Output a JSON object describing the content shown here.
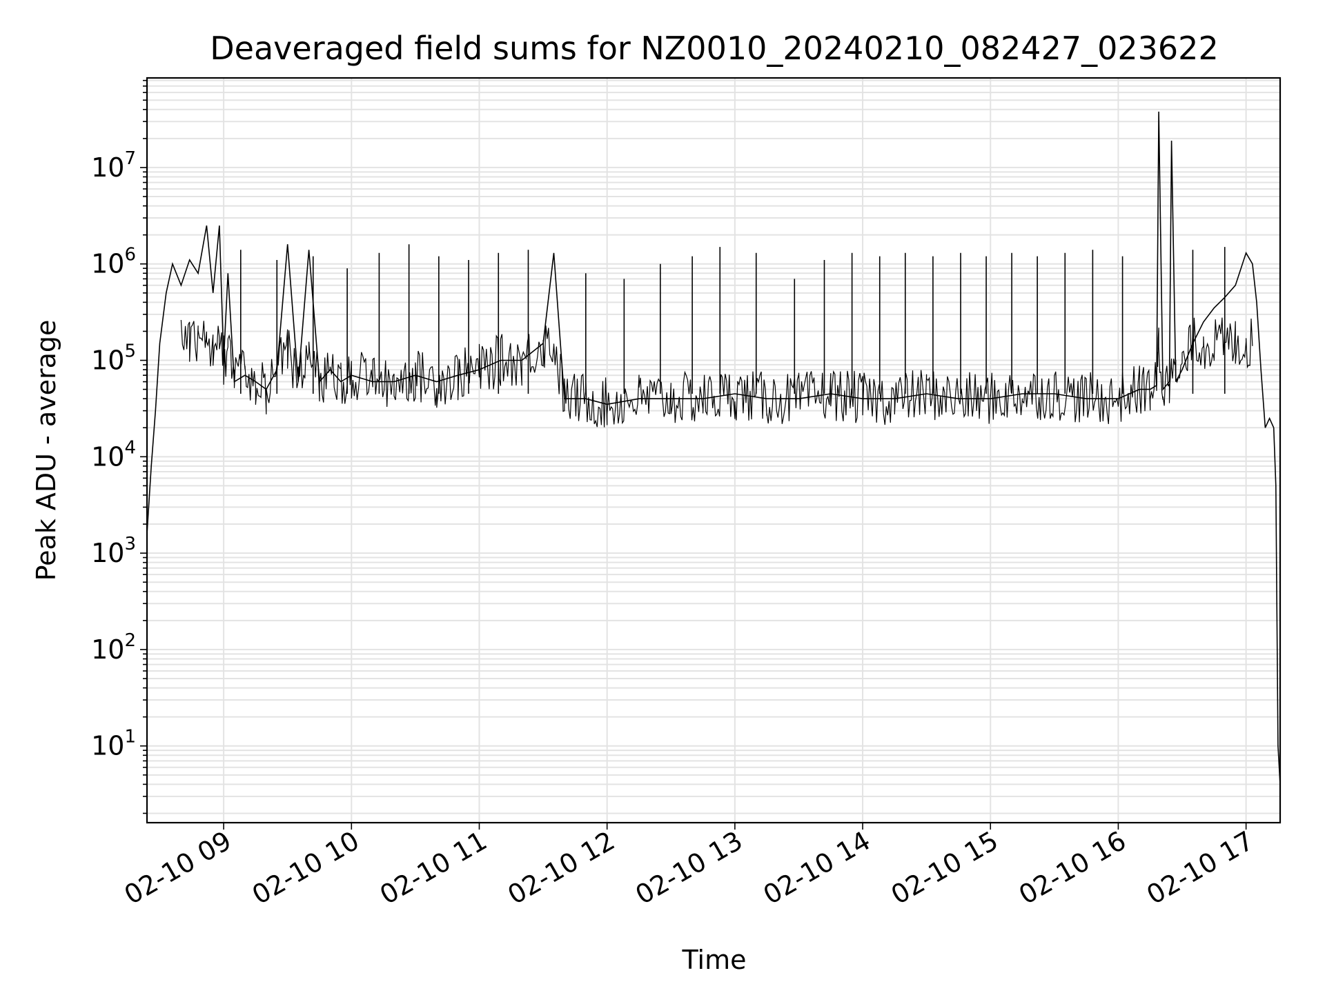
{
  "chart_data": {
    "type": "line",
    "title": "Deaveraged field sums for NZ0010_20240210_082427_023622",
    "xlabel": "Time",
    "ylabel": "Peak ADU - average",
    "yscale": "log",
    "xlim": [
      "2024-02-10 08:24",
      "2024-02-10 17:16"
    ],
    "ylim": [
      1.6,
      85000000.0
    ],
    "grid": true,
    "x_tick_labels": [
      "02-10 09",
      "02-10 10",
      "02-10 11",
      "02-10 12",
      "02-10 13",
      "02-10 14",
      "02-10 15",
      "02-10 16",
      "02-10 17"
    ],
    "y_tick_labels": [
      {
        "base": "10",
        "exp": "1"
      },
      {
        "base": "10",
        "exp": "2"
      },
      {
        "base": "10",
        "exp": "3"
      },
      {
        "base": "10",
        "exp": "4"
      },
      {
        "base": "10",
        "exp": "5"
      },
      {
        "base": "10",
        "exp": "6"
      },
      {
        "base": "10",
        "exp": "7"
      }
    ],
    "series": [
      {
        "color": "#000000",
        "x": [
          "2024-02-10 08:24",
          "2024-02-10 08:26",
          "2024-02-10 08:28",
          "2024-02-10 08:30",
          "2024-02-10 08:33",
          "2024-02-10 08:36",
          "2024-02-10 08:40",
          "2024-02-10 08:44",
          "2024-02-10 08:48",
          "2024-02-10 08:52",
          "2024-02-10 08:55",
          "2024-02-10 08:58",
          "2024-02-10 09:00",
          "2024-02-10 09:02",
          "2024-02-10 09:05",
          "2024-02-10 09:10",
          "2024-02-10 09:15",
          "2024-02-10 09:20",
          "2024-02-10 09:25",
          "2024-02-10 09:30",
          "2024-02-10 09:35",
          "2024-02-10 09:40",
          "2024-02-10 09:45",
          "2024-02-10 09:50",
          "2024-02-10 09:55",
          "2024-02-10 10:00",
          "2024-02-10 10:10",
          "2024-02-10 10:20",
          "2024-02-10 10:30",
          "2024-02-10 10:40",
          "2024-02-10 10:50",
          "2024-02-10 11:00",
          "2024-02-10 11:10",
          "2024-02-10 11:20",
          "2024-02-10 11:30",
          "2024-02-10 11:35",
          "2024-02-10 11:40",
          "2024-02-10 11:50",
          "2024-02-10 12:00",
          "2024-02-10 12:15",
          "2024-02-10 12:30",
          "2024-02-10 12:45",
          "2024-02-10 13:00",
          "2024-02-10 13:15",
          "2024-02-10 13:30",
          "2024-02-10 13:45",
          "2024-02-10 14:00",
          "2024-02-10 14:15",
          "2024-02-10 14:30",
          "2024-02-10 14:45",
          "2024-02-10 15:00",
          "2024-02-10 15:15",
          "2024-02-10 15:30",
          "2024-02-10 15:45",
          "2024-02-10 16:00",
          "2024-02-10 16:10",
          "2024-02-10 16:15",
          "2024-02-10 16:18",
          "2024-02-10 16:19",
          "2024-02-10 16:21",
          "2024-02-10 16:24",
          "2024-02-10 16:25",
          "2024-02-10 16:27",
          "2024-02-10 16:30",
          "2024-02-10 16:35",
          "2024-02-10 16:40",
          "2024-02-10 16:45",
          "2024-02-10 16:50",
          "2024-02-10 16:55",
          "2024-02-10 17:00",
          "2024-02-10 17:03",
          "2024-02-10 17:05",
          "2024-02-10 17:07",
          "2024-02-10 17:09",
          "2024-02-10 17:11",
          "2024-02-10 17:13",
          "2024-02-10 17:14",
          "2024-02-10 17:15",
          "2024-02-10 17:16"
        ],
        "y": [
          1600,
          8000,
          30000,
          150000,
          500000,
          1000000,
          600000,
          1100000,
          800000,
          2500000,
          500000,
          2500000,
          100000,
          800000,
          60000,
          70000,
          60000,
          50000,
          80000,
          1600000,
          60000,
          1400000,
          60000,
          80000,
          60000,
          70000,
          60000,
          60000,
          70000,
          60000,
          70000,
          80000,
          100000,
          100000,
          150000,
          1300000,
          40000,
          40000,
          35000,
          40000,
          40000,
          40000,
          45000,
          40000,
          40000,
          45000,
          40000,
          40000,
          45000,
          40000,
          40000,
          45000,
          45000,
          40000,
          40000,
          50000,
          50000,
          55000,
          38000000,
          50000,
          60000,
          19000000,
          60000,
          80000,
          150000,
          250000,
          350000,
          450000,
          600000,
          1300000,
          1000000,
          400000,
          80000,
          20000,
          25000,
          20000,
          5000,
          10,
          4
        ]
      },
      {
        "color": "#000000",
        "x": [
          "2024-02-10 09:08",
          "2024-02-10 09:25",
          "2024-02-10 09:42",
          "2024-02-10 09:58",
          "2024-02-10 10:13",
          "2024-02-10 10:27",
          "2024-02-10 10:41",
          "2024-02-10 10:55",
          "2024-02-10 11:09",
          "2024-02-10 11:23",
          "2024-02-10 11:50",
          "2024-02-10 12:08",
          "2024-02-10 12:25",
          "2024-02-10 12:40",
          "2024-02-10 12:53",
          "2024-02-10 13:10",
          "2024-02-10 13:28",
          "2024-02-10 13:42",
          "2024-02-10 13:55",
          "2024-02-10 14:08",
          "2024-02-10 14:20",
          "2024-02-10 14:33",
          "2024-02-10 14:46",
          "2024-02-10 14:58",
          "2024-02-10 15:10",
          "2024-02-10 15:22",
          "2024-02-10 15:35",
          "2024-02-10 15:48",
          "2024-02-10 16:02",
          "2024-02-10 16:35",
          "2024-02-10 16:50"
        ],
        "y": [
          1400000,
          1100000,
          1200000,
          900000,
          1300000,
          1600000,
          1200000,
          1100000,
          1300000,
          1400000,
          800000,
          700000,
          1000000,
          1200000,
          1500000,
          1300000,
          700000,
          1100000,
          1300000,
          1200000,
          1300000,
          1200000,
          1300000,
          1200000,
          1300000,
          1200000,
          1300000,
          1400000,
          1200000,
          1400000,
          1500000
        ]
      }
    ]
  }
}
